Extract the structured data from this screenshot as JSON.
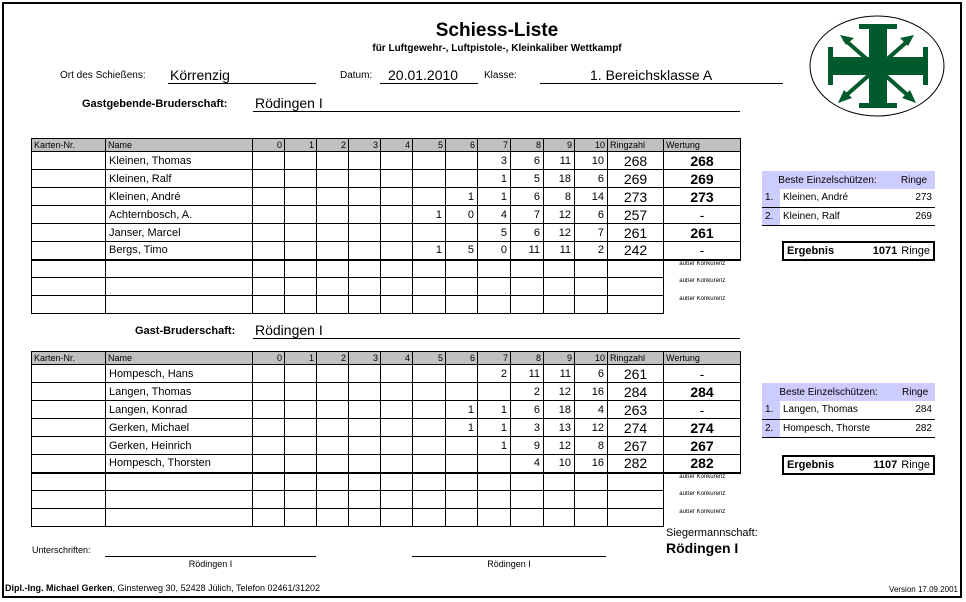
{
  "header": {
    "title": "Schiess-Liste",
    "subtitle": "für Luftgewehr-, Luftpistole-, Kleinkaliber Wettkampf",
    "ort_label": "Ort des Schießens:",
    "ort": "Körrenzig",
    "datum_label": "Datum:",
    "datum": "20.01.2010",
    "klasse_label": "Klasse:",
    "klasse": "1. Bereichsklasse A"
  },
  "logo": {
    "colors": {
      "green": "#005a2b"
    }
  },
  "columns": [
    "Karten-Nr.",
    "Name",
    "0",
    "1",
    "2",
    "3",
    "4",
    "5",
    "6",
    "7",
    "8",
    "9",
    "10",
    "Ringzahl",
    "Wertung"
  ],
  "ausser": "außer Konkurenz",
  "teams": [
    {
      "label": "Gastgebende-Bruderschaft:",
      "name": "Rödingen I",
      "rows": [
        {
          "name": "Kleinen, Thomas",
          "counts": [
            "",
            "",
            "",
            "",
            "",
            "",
            "",
            "3",
            "6",
            "11",
            "10"
          ],
          "ringzahl": "268",
          "wertung": "268"
        },
        {
          "name": "Kleinen, Ralf",
          "counts": [
            "",
            "",
            "",
            "",
            "",
            "",
            "",
            "1",
            "5",
            "18",
            "6"
          ],
          "ringzahl": "269",
          "wertung": "269"
        },
        {
          "name": "Kleinen, André",
          "counts": [
            "",
            "",
            "",
            "",
            "",
            "",
            "1",
            "1",
            "6",
            "8",
            "14"
          ],
          "ringzahl": "273",
          "wertung": "273"
        },
        {
          "name": "Achternbosch, A.",
          "counts": [
            "",
            "",
            "",
            "",
            "",
            "1",
            "0",
            "4",
            "7",
            "12",
            "6"
          ],
          "ringzahl": "257",
          "wertung": "-"
        },
        {
          "name": "Janser, Marcel",
          "counts": [
            "",
            "",
            "",
            "",
            "",
            "",
            "",
            "5",
            "6",
            "12",
            "7"
          ],
          "ringzahl": "261",
          "wertung": "261"
        },
        {
          "name": "Bergs, Timo",
          "counts": [
            "",
            "",
            "",
            "",
            "",
            "1",
            "5",
            "0",
            "11",
            "11",
            "2"
          ],
          "ringzahl": "242",
          "wertung": "-"
        }
      ],
      "best": {
        "header": "Beste Einzelschützen:",
        "ringe_label": "Ringe",
        "entries": [
          {
            "rank": "1.",
            "name": "Kleinen, André",
            "ringe": "273"
          },
          {
            "rank": "2.",
            "name": "Kleinen, Ralf",
            "ringe": "269"
          }
        ]
      },
      "ergebnis_label": "Ergebnis",
      "ergebnis": "1071",
      "ringe_unit": "Ringe"
    },
    {
      "label": "Gast-Bruderschaft:",
      "name": "Rödingen I",
      "rows": [
        {
          "name": "Hompesch, Hans",
          "counts": [
            "",
            "",
            "",
            "",
            "",
            "",
            "",
            "2",
            "11",
            "11",
            "6"
          ],
          "ringzahl": "261",
          "wertung": "-"
        },
        {
          "name": "Langen, Thomas",
          "counts": [
            "",
            "",
            "",
            "",
            "",
            "",
            "",
            "",
            "2",
            "12",
            "16"
          ],
          "ringzahl": "284",
          "wertung": "284"
        },
        {
          "name": "Langen, Konrad",
          "counts": [
            "",
            "",
            "",
            "",
            "",
            "",
            "1",
            "1",
            "6",
            "18",
            "4"
          ],
          "ringzahl": "263",
          "wertung": "-"
        },
        {
          "name": "Gerken, Michael",
          "counts": [
            "",
            "",
            "",
            "",
            "",
            "",
            "1",
            "1",
            "3",
            "13",
            "12"
          ],
          "ringzahl": "274",
          "wertung": "274"
        },
        {
          "name": "Gerken, Heinrich",
          "counts": [
            "",
            "",
            "",
            "",
            "",
            "",
            "",
            "1",
            "9",
            "12",
            "8"
          ],
          "ringzahl": "267",
          "wertung": "267"
        },
        {
          "name": "Hompesch, Thorsten",
          "counts": [
            "",
            "",
            "",
            "",
            "",
            "",
            "",
            "",
            "4",
            "10",
            "16"
          ],
          "ringzahl": "282",
          "wertung": "282"
        }
      ],
      "best": {
        "header": "Beste Einzelschützen:",
        "ringe_label": "Ringe",
        "entries": [
          {
            "rank": "1.",
            "name": "Langen, Thomas",
            "ringe": "284"
          },
          {
            "rank": "2.",
            "name": "Hompesch, Thorste",
            "ringe": "282"
          }
        ]
      },
      "ergebnis_label": "Ergebnis",
      "ergebnis": "1107",
      "ringe_unit": "Ringe"
    }
  ],
  "footer": {
    "sieger_label": "Siegermannschaft:",
    "sieger": "Rödingen I",
    "unterschriften_label": "Unterschriften:",
    "sig1": "Rödingen I",
    "sig2": "Rödingen I",
    "author": "Dipl.-Ing. Michael Gerken",
    "address": ", Ginsterweg 30, 52428 Jülich, Telefon 02461/31202",
    "version": "Version 17.09.2001"
  }
}
